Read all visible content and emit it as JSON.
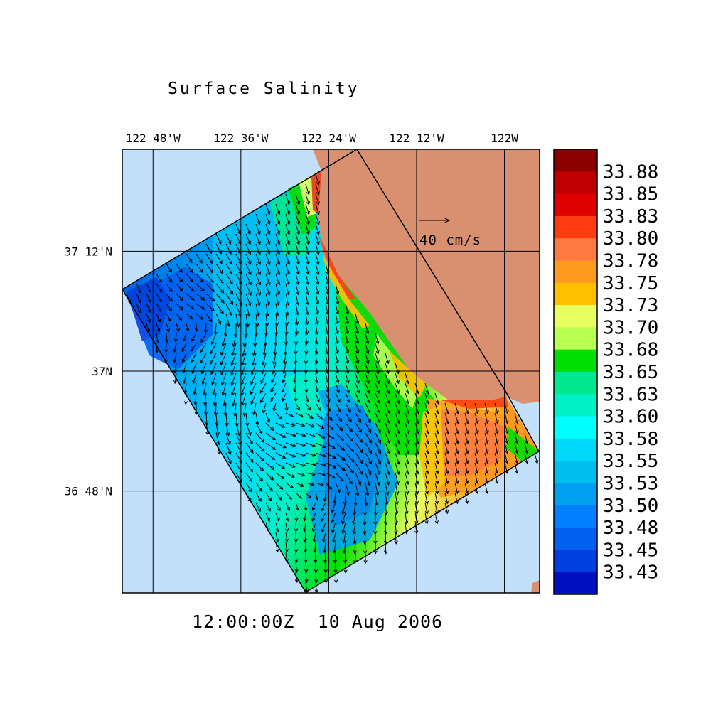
{
  "title": "Surface Salinity",
  "timestamp": "12:00:00Z  10 Aug 2006",
  "vector_reference": {
    "label": "40 cm/s"
  },
  "colors": {
    "ocean": "#c3e0fa",
    "land": "#d99070",
    "frame": "#000000"
  },
  "map": {
    "lon_range": [
      -122.87,
      -121.92
    ],
    "lat_range": [
      36.63,
      37.37
    ],
    "lon_ticks": [
      {
        "value": -122.8,
        "label": "122 48'W"
      },
      {
        "value": -122.6,
        "label": "122 36'W"
      },
      {
        "value": -122.4,
        "label": "122 24'W"
      },
      {
        "value": -122.2,
        "label": "122 12'W"
      },
      {
        "value": -122.0,
        "label": "122W"
      }
    ],
    "lat_ticks": [
      {
        "value": 37.2,
        "label": "37 12'N"
      },
      {
        "value": 37.0,
        "label": "37N"
      },
      {
        "value": 36.8,
        "label": "36 48'N"
      }
    ]
  },
  "colorbar": {
    "labels": [
      "33.88",
      "33.85",
      "33.83",
      "33.80",
      "33.78",
      "33.75",
      "33.73",
      "33.70",
      "33.68",
      "33.65",
      "33.63",
      "33.60",
      "33.58",
      "33.55",
      "33.53",
      "33.50",
      "33.48",
      "33.45",
      "33.43"
    ],
    "colors": [
      "#8c0000",
      "#c00000",
      "#e00000",
      "#ff3c10",
      "#ff7a40",
      "#ff9a20",
      "#ffc000",
      "#e8ff60",
      "#b8ff50",
      "#00e000",
      "#00e890",
      "#00f0c8",
      "#00ffff",
      "#00d8f8",
      "#00c0f0",
      "#00a0f0",
      "#0080ff",
      "#0060f0",
      "#0040e0",
      "#0010c0"
    ]
  }
}
